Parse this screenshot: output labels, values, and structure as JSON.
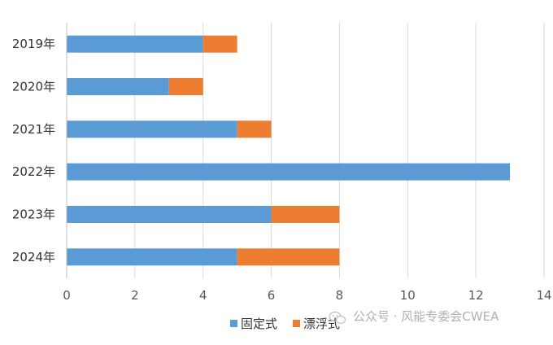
{
  "chart_data": {
    "type": "bar",
    "orientation": "horizontal",
    "stacked": true,
    "categories": [
      "2019年",
      "2020年",
      "2021年",
      "2022年",
      "2023年",
      "2024年"
    ],
    "series": [
      {
        "name": "固定式",
        "values": [
          4,
          3,
          5,
          13,
          6,
          5
        ],
        "color": "#5b9bd5"
      },
      {
        "name": "漂浮式",
        "values": [
          1,
          1,
          1,
          0,
          2,
          3
        ],
        "color": "#ed7d31"
      }
    ],
    "xlim": [
      0,
      14
    ],
    "xticks": [
      0,
      2,
      4,
      6,
      8,
      10,
      12,
      14
    ],
    "grid": "vertical",
    "legend_position": "bottom"
  },
  "watermark": {
    "text": "公众号 · 风能专委会CWEA",
    "icon": "wechat-icon"
  }
}
